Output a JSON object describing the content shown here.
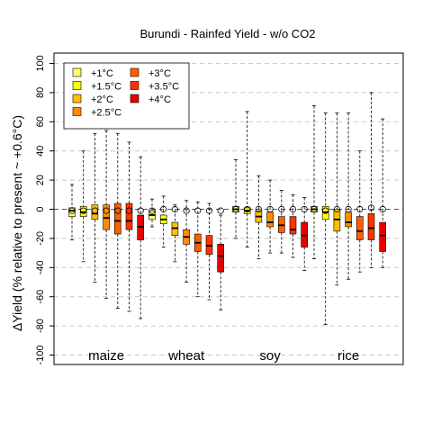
{
  "chart_data": {
    "type": "boxplot",
    "title": "Burundi - Rainfed Yield - w/o CO2",
    "ylabel": "ΔYield (% relative to present ~ +0.6°C)",
    "ylim": [
      -106,
      106
    ],
    "yticks": [
      -100,
      -80,
      -60,
      -40,
      -20,
      0,
      20,
      40,
      60,
      80,
      100
    ],
    "grid": "horizontal dashed",
    "legend_position": "top-left",
    "legend": [
      {
        "label": "+1°C",
        "color": "#ffff66"
      },
      {
        "label": "+1.5°C",
        "color": "#ffff00"
      },
      {
        "label": "+2°C",
        "color": "#ffc000"
      },
      {
        "label": "+2.5°C",
        "color": "#ff8c00"
      },
      {
        "label": "+3°C",
        "color": "#ff6000"
      },
      {
        "label": "+3.5°C",
        "color": "#ff3300"
      },
      {
        "label": "+4°C",
        "color": "#e60000"
      }
    ],
    "groups": [
      {
        "name": "maize",
        "boxes": [
          {
            "level": "+1°C",
            "whisker_low": -21,
            "q1": -5,
            "median": -1,
            "q3": 1,
            "whisker_high": 17,
            "mean": -1
          },
          {
            "level": "+1.5°C",
            "whisker_low": -36,
            "q1": -5,
            "median": -2,
            "q3": 2,
            "whisker_high": 40,
            "mean": -1
          },
          {
            "level": "+2°C",
            "whisker_low": -50,
            "q1": -7,
            "median": -3,
            "q3": 3,
            "whisker_high": 52,
            "mean": -1
          },
          {
            "level": "+2.5°C",
            "whisker_low": -61,
            "q1": -14,
            "median": -6,
            "q3": 3,
            "whisker_high": 54,
            "mean": -1
          },
          {
            "level": "+3°C",
            "whisker_low": -68,
            "q1": -17,
            "median": -8,
            "q3": 4,
            "whisker_high": 52,
            "mean": -1
          },
          {
            "level": "+3.5°C",
            "whisker_low": -70,
            "q1": -14,
            "median": -8,
            "q3": 4,
            "whisker_high": 46,
            "mean": -1
          },
          {
            "level": "+4°C",
            "whisker_low": -75,
            "q1": -21,
            "median": -12,
            "q3": -4,
            "whisker_high": 36,
            "mean": -1
          }
        ]
      },
      {
        "name": "wheat",
        "boxes": [
          {
            "level": "+1°C",
            "whisker_low": -12,
            "q1": -7,
            "median": -4,
            "q3": -1,
            "whisker_high": 7,
            "mean": -1
          },
          {
            "level": "+1.5°C",
            "whisker_low": -26,
            "q1": -10,
            "median": -7,
            "q3": -4,
            "whisker_high": 9,
            "mean": 0
          },
          {
            "level": "+2°C",
            "whisker_low": -36,
            "q1": -18,
            "median": -13,
            "q3": -9,
            "whisker_high": 3,
            "mean": 0
          },
          {
            "level": "+2.5°C",
            "whisker_low": -50,
            "q1": -24,
            "median": -19,
            "q3": -14,
            "whisker_high": 6,
            "mean": -1
          },
          {
            "level": "+3°C",
            "whisker_low": -60,
            "q1": -29,
            "median": -23,
            "q3": -17,
            "whisker_high": 5,
            "mean": -1
          },
          {
            "level": "+3.5°C",
            "whisker_low": -62,
            "q1": -31,
            "median": -25,
            "q3": -18,
            "whisker_high": 4,
            "mean": -1
          },
          {
            "level": "+4°C",
            "whisker_low": -69,
            "q1": -43,
            "median": -32,
            "q3": -24,
            "whisker_high": -4,
            "mean": -1
          }
        ]
      },
      {
        "name": "soy",
        "boxes": [
          {
            "level": "+1°C",
            "whisker_low": -20,
            "q1": -2,
            "median": 0,
            "q3": 2,
            "whisker_high": 34,
            "mean": 0
          },
          {
            "level": "+1.5°C",
            "whisker_low": -26,
            "q1": -3,
            "median": -1,
            "q3": 1,
            "whisker_high": 67,
            "mean": 0
          },
          {
            "level": "+2°C",
            "whisker_low": -34,
            "q1": -9,
            "median": -5,
            "q3": -1,
            "whisker_high": 23,
            "mean": 0
          },
          {
            "level": "+2.5°C",
            "whisker_low": -30,
            "q1": -12,
            "median": -9,
            "q3": -2,
            "whisker_high": 20,
            "mean": 0
          },
          {
            "level": "+3°C",
            "whisker_low": -30,
            "q1": -16,
            "median": -11,
            "q3": -5,
            "whisker_high": 13,
            "mean": 0
          },
          {
            "level": "+3.5°C",
            "whisker_low": -33,
            "q1": -17,
            "median": -14,
            "q3": -5,
            "whisker_high": 10,
            "mean": 0
          },
          {
            "level": "+4°C",
            "whisker_low": -42,
            "q1": -26,
            "median": -18,
            "q3": -9,
            "whisker_high": 8,
            "mean": 0
          }
        ]
      },
      {
        "name": "rice",
        "boxes": [
          {
            "level": "+1°C",
            "whisker_low": -34,
            "q1": -2,
            "median": 0,
            "q3": 2,
            "whisker_high": 71,
            "mean": 0
          },
          {
            "level": "+1.5°C",
            "whisker_low": -79,
            "q1": -7,
            "median": -2,
            "q3": 2,
            "whisker_high": 66,
            "mean": -1
          },
          {
            "level": "+2°C",
            "whisker_low": -52,
            "q1": -15,
            "median": -7,
            "q3": 0,
            "whisker_high": 66,
            "mean": 0
          },
          {
            "level": "+2.5°C",
            "whisker_low": -48,
            "q1": -12,
            "median": -9,
            "q3": -2,
            "whisker_high": 66,
            "mean": 0
          },
          {
            "level": "+3°C",
            "whisker_low": -43,
            "q1": -21,
            "median": -15,
            "q3": -5,
            "whisker_high": 40,
            "mean": 0
          },
          {
            "level": "+3.5°C",
            "whisker_low": -40,
            "q1": -21,
            "median": -13,
            "q3": -3,
            "whisker_high": 80,
            "mean": 1
          },
          {
            "level": "+4°C",
            "whisker_low": -40,
            "q1": -29,
            "median": -18,
            "q3": -9,
            "whisker_high": 62,
            "mean": 0
          }
        ]
      }
    ]
  }
}
